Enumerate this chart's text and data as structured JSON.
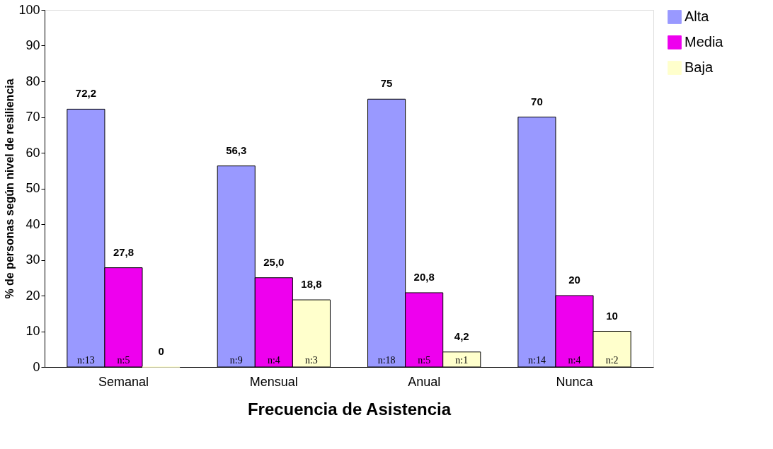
{
  "chart_data": {
    "type": "bar",
    "xlabel": "Frecuencia de Asistencia",
    "ylabel": "% de personas según nivel de resiliencia",
    "categories": [
      "Semanal",
      "Mensual",
      "Anual",
      "Nunca"
    ],
    "series": [
      {
        "name": "Alta",
        "color": "#9999ff",
        "values": [
          72.2,
          56.3,
          75,
          70
        ],
        "value_labels": [
          "72,2",
          "56,3",
          "75",
          "70"
        ]
      },
      {
        "name": "Media",
        "color": "#ee00ee",
        "values": [
          27.8,
          25.0,
          20.8,
          20
        ],
        "value_labels": [
          "27,8",
          "25,0",
          "20,8",
          "20"
        ]
      },
      {
        "name": "Baja",
        "color": "#ffffcc",
        "values": [
          0,
          18.8,
          4.2,
          10
        ],
        "value_labels": [
          "0",
          "18,8",
          "4,2",
          "10"
        ]
      }
    ],
    "annotations": [
      "n:13",
      "n:5",
      "n:9",
      "n:4",
      "n:3",
      "n:18",
      "n:5",
      "n:1",
      "n:14",
      "n:4",
      "n:2"
    ],
    "ylim": [
      0,
      100
    ],
    "yticks": [
      0,
      10,
      20,
      30,
      40,
      50,
      60,
      70,
      80,
      90,
      100
    ],
    "grid": false,
    "legend": "top right"
  }
}
